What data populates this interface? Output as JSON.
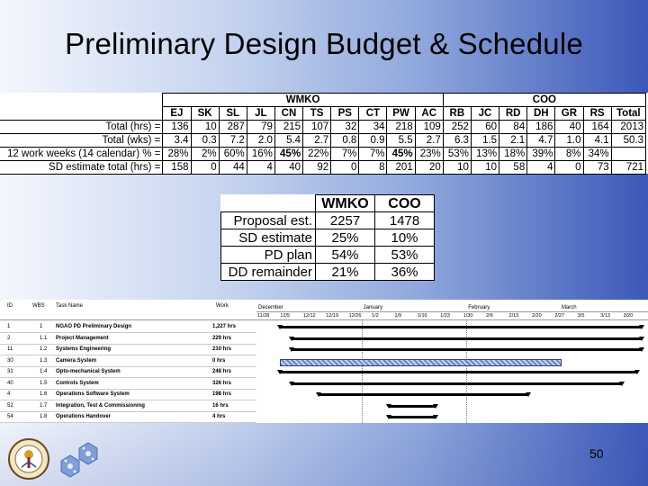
{
  "title": "Preliminary Design Budget & Schedule",
  "budget": {
    "groups": {
      "wmko": "WMKO",
      "coo": "COO"
    },
    "columns": [
      "EJ",
      "SK",
      "SL",
      "JL",
      "CN",
      "TS",
      "PS",
      "CT",
      "PW",
      "AC",
      "RB",
      "JC",
      "RD",
      "DH",
      "GR",
      "RS",
      "Total"
    ],
    "rows": [
      {
        "label": "Total (hrs) =",
        "cells": [
          "136",
          "10",
          "287",
          "79",
          "215",
          "107",
          "32",
          "34",
          "218",
          "109",
          "252",
          "60",
          "84",
          "186",
          "40",
          "164",
          "2013"
        ]
      },
      {
        "label": "Total (wks) =",
        "cells": [
          "3.4",
          "0.3",
          "7.2",
          "2.0",
          "5.4",
          "2.7",
          "0.8",
          "0.9",
          "5.5",
          "2.7",
          "6.3",
          "1.5",
          "2.1",
          "4.7",
          "1.0",
          "4.1",
          "50.3"
        ]
      },
      {
        "label": "12 work weeks (14 calendar) % =",
        "cells": [
          "28%",
          "2%",
          "60%",
          "16%",
          "45%",
          "22%",
          "7%",
          "7%",
          "45%",
          "23%",
          "53%",
          "13%",
          "18%",
          "39%",
          "8%",
          "34%",
          ""
        ]
      },
      {
        "label": "SD estimate total (hrs) =",
        "cells": [
          "158",
          "0",
          "44",
          "4",
          "40",
          "92",
          "0",
          "8",
          "201",
          "20",
          "10",
          "10",
          "58",
          "4",
          "0",
          "73",
          "721"
        ]
      }
    ]
  },
  "summary": {
    "headers": [
      "WMKO",
      "COO"
    ],
    "rows": [
      {
        "label": "Proposal est.",
        "wmko": "2257",
        "coo": "1478"
      },
      {
        "label": "SD estimate",
        "wmko": "25%",
        "coo": "10%"
      },
      {
        "label": "PD plan",
        "wmko": "54%",
        "coo": "53%"
      },
      {
        "label": "DD remainder",
        "wmko": "21%",
        "coo": "36%"
      }
    ]
  },
  "gantt": {
    "col_headers": {
      "id": "ID",
      "wbs": "WBS",
      "name": "Task Name",
      "work": "Work"
    },
    "months": [
      "December",
      "January",
      "February",
      "March"
    ],
    "weeks": [
      "11/28",
      "12/5",
      "12/12",
      "12/19",
      "12/26",
      "1/2",
      "1/9",
      "1/16",
      "1/23",
      "1/30",
      "2/6",
      "2/13",
      "2/20",
      "2/27",
      "3/5",
      "3/13",
      "3/20"
    ],
    "tasks": [
      {
        "id": "1",
        "wbs": "1",
        "name": "NGAO PD Preliminary Design",
        "work": "1,227 hrs",
        "start": 0.06,
        "end": 0.99,
        "style": "summary"
      },
      {
        "id": "2",
        "wbs": "1.1",
        "name": "Project Management",
        "work": "229 hrs",
        "start": 0.09,
        "end": 0.99,
        "style": "bar"
      },
      {
        "id": "11",
        "wbs": "1.2",
        "name": "Systems Engineering",
        "work": "210 hrs",
        "start": 0.09,
        "end": 0.99,
        "style": "bar"
      },
      {
        "id": "30",
        "wbs": "1.3",
        "name": "Camera System",
        "work": "0 hrs",
        "start": 0.06,
        "end": 0.78,
        "style": "hatched"
      },
      {
        "id": "31",
        "wbs": "1.4",
        "name": "Opto-mechanical System",
        "work": "248 hrs",
        "start": 0.06,
        "end": 0.98,
        "style": "bar"
      },
      {
        "id": "40",
        "wbs": "1.5",
        "name": "Controls System",
        "work": "326 hrs",
        "start": 0.09,
        "end": 0.94,
        "style": "bar"
      },
      {
        "id": "4",
        "wbs": "1.6",
        "name": "Operations Software System",
        "work": "198 hrs",
        "start": 0.16,
        "end": 0.7,
        "style": "bar"
      },
      {
        "id": "52",
        "wbs": "1.7",
        "name": "Integration, Test & Commissioning",
        "work": "16 hrs",
        "start": 0.34,
        "end": 0.46,
        "style": "bar"
      },
      {
        "id": "54",
        "wbs": "1.8",
        "name": "Operations Handover",
        "work": "4 hrs",
        "start": 0.34,
        "end": 0.46,
        "style": "bar"
      }
    ]
  },
  "page_number": "50",
  "icons": {
    "seal": "university-seal-icon",
    "snowflake": "snowflake-logo-icon"
  }
}
